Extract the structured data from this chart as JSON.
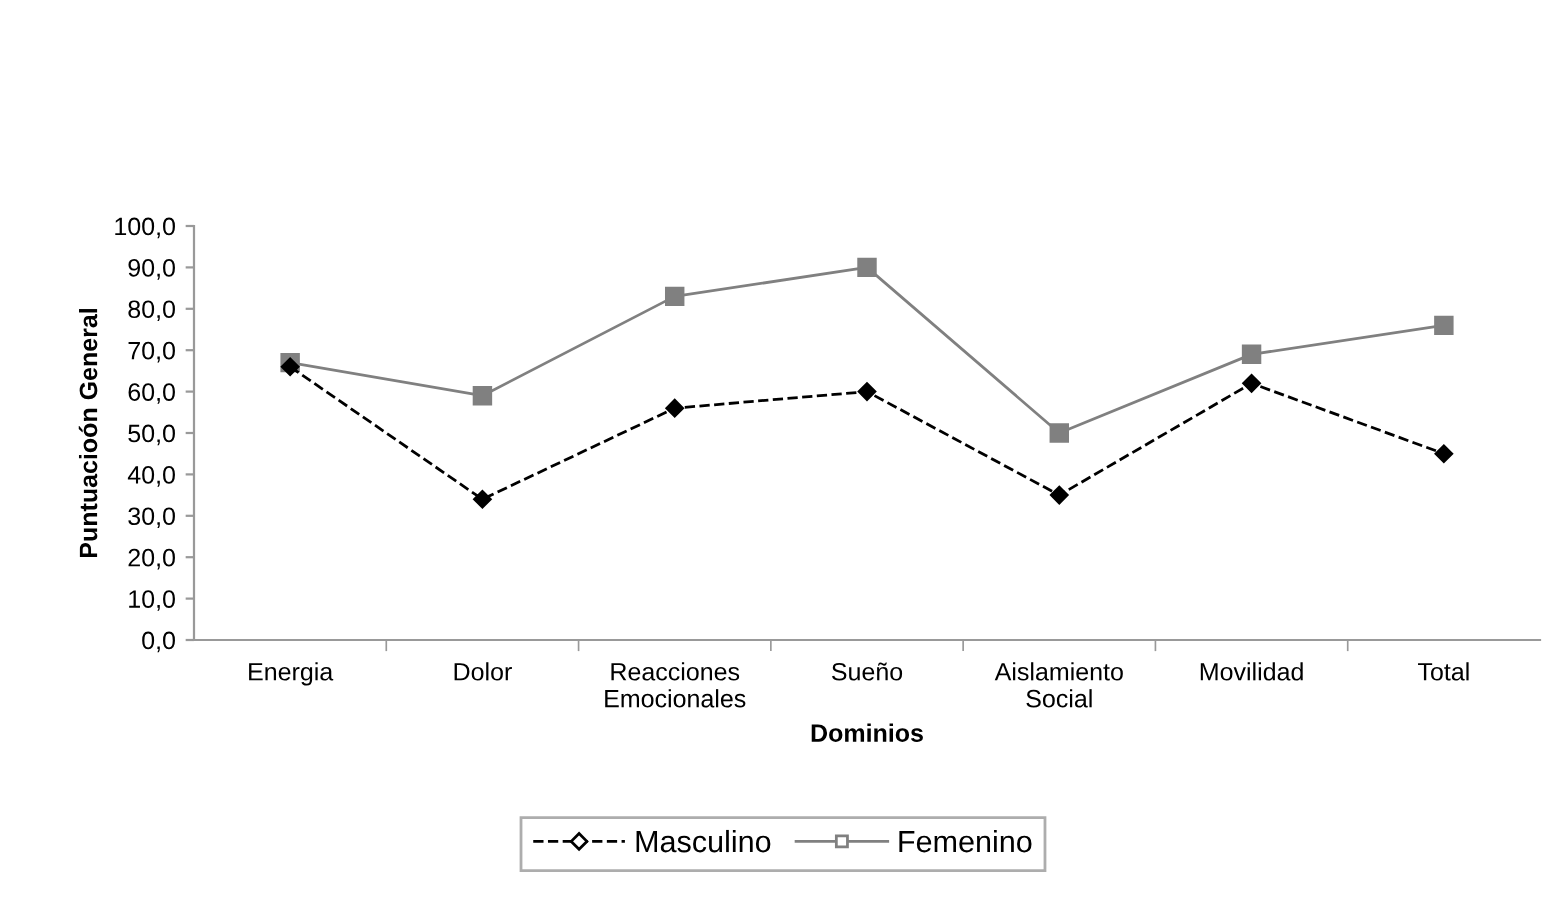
{
  "chart_data": {
    "type": "line",
    "xlabel": "Dominios",
    "ylabel": "Puntuacioón General",
    "categories": [
      "Energia",
      "Dolor",
      "Reacciones\nEmocionales",
      "Sueño",
      "Aislamiento\nSocial",
      "Movilidad",
      "Total"
    ],
    "series": [
      {
        "name": "Masculino",
        "color": "#000000",
        "values": [
          66,
          34,
          56,
          60,
          35,
          62,
          45
        ],
        "marker": "diamond",
        "line_style": "dashed"
      },
      {
        "name": "Femenino",
        "color": "#808080",
        "values": [
          67,
          59,
          83,
          90,
          50,
          69,
          76
        ],
        "marker": "square",
        "line_style": "solid"
      }
    ],
    "ylim": [
      0,
      100
    ],
    "yticks": [
      {
        "value": 0,
        "label": "0,0"
      },
      {
        "value": 10,
        "label": "10,0"
      },
      {
        "value": 20,
        "label": "20,0"
      },
      {
        "value": 30,
        "label": "30,0"
      },
      {
        "value": 40,
        "label": "40,0"
      },
      {
        "value": 50,
        "label": "50,0"
      },
      {
        "value": 60,
        "label": "60,0"
      },
      {
        "value": 70,
        "label": "70,0"
      },
      {
        "value": 80,
        "label": "80,0"
      },
      {
        "value": 90,
        "label": "90,0"
      },
      {
        "value": 100,
        "label": "100,0"
      }
    ],
    "grid": false,
    "legend": "bottom"
  }
}
